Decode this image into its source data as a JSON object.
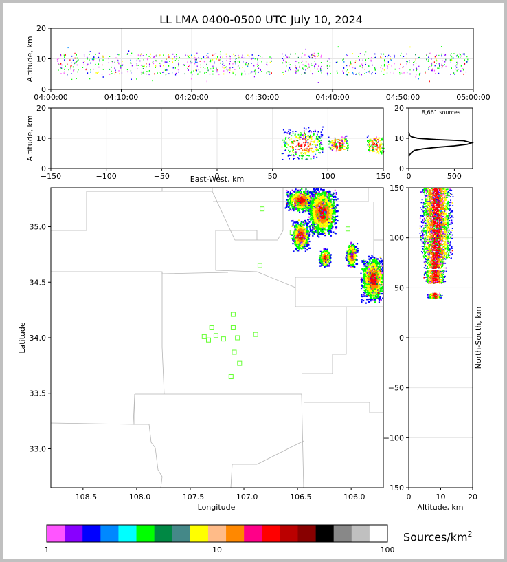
{
  "title": "LL LMA 0400-0500 UTC July 10, 2024",
  "colors": {
    "frame": "#c0c0c0",
    "county_lines": "#b4b4b4",
    "station_marker": "#66ff33",
    "source_palette": [
      "#ff55ff",
      "#8800ff",
      "#0000ff",
      "#0088ff",
      "#00ffff",
      "#00ff00",
      "#008844",
      "#448888",
      "#ffff00",
      "#ffbb88",
      "#ff8800",
      "#ff0088",
      "#ff0000",
      "#bb0000",
      "#880000",
      "#000000",
      "#888888",
      "#c0c0c0",
      "#ffffff"
    ]
  },
  "chart_data": [
    {
      "id": "time-height",
      "type": "scatter",
      "ylabel": "Altitude, km",
      "ylim": [
        0,
        20
      ],
      "yticks": [
        "0",
        "10",
        "20"
      ],
      "xlim": [
        "04:00:00",
        "05:00:00"
      ],
      "xticks": [
        "04:00:00",
        "04:10:00",
        "04:20:00",
        "04:30:00",
        "04:40:00",
        "04:50:00",
        "05:00:00"
      ],
      "altitude_band_km": [
        4,
        12
      ],
      "grid": true
    },
    {
      "id": "ew-height",
      "type": "heatmap",
      "xlabel": "East-West, km",
      "ylabel": "Altitude, km",
      "xlim": [
        -150,
        150
      ],
      "ylim": [
        0,
        20
      ],
      "xticks": [
        "−150",
        "−100",
        "−50",
        "0",
        "50",
        "100",
        "150"
      ],
      "yticks": [
        "0",
        "10",
        "20"
      ],
      "clusters": [
        {
          "x": [
            58,
            95
          ],
          "z": [
            3,
            14
          ]
        },
        {
          "x": [
            100,
            118
          ],
          "z": [
            6,
            11
          ]
        },
        {
          "x": [
            135,
            150
          ],
          "z": [
            5,
            11
          ]
        }
      ],
      "grid": true
    },
    {
      "id": "altitude-histogram",
      "type": "line",
      "annotation": "8,661 sources",
      "xlim": [
        0,
        700
      ],
      "ylim": [
        0,
        20
      ],
      "xticks": [
        "0",
        "500"
      ],
      "yticks": [
        "0",
        "10",
        "20"
      ],
      "profile": [
        [
          0,
          4
        ],
        [
          20,
          5
        ],
        [
          60,
          6
        ],
        [
          150,
          6.5
        ],
        [
          300,
          7
        ],
        [
          500,
          7.5
        ],
        [
          640,
          8
        ],
        [
          690,
          8.5
        ],
        [
          600,
          9.2
        ],
        [
          300,
          9.6
        ],
        [
          100,
          10
        ],
        [
          30,
          10.5
        ],
        [
          10,
          11
        ],
        [
          0,
          12
        ]
      ]
    },
    {
      "id": "plan-view",
      "type": "heatmap",
      "xlabel": "Longitude",
      "ylabel": "Latitude",
      "xlim": [
        -108.8,
        -105.7
      ],
      "ylim": [
        32.65,
        35.35
      ],
      "xticks": [
        "−108.5",
        "−108.0",
        "−107.5",
        "−107.0",
        "−106.5",
        "−106.0"
      ],
      "yticks": [
        "33.0",
        "33.5",
        "34.0",
        "34.5",
        "35.0"
      ],
      "stations": [
        [
          -106.83,
          35.16
        ],
        [
          -106.85,
          34.65
        ],
        [
          -106.55,
          34.95
        ],
        [
          -106.03,
          34.98
        ],
        [
          -107.1,
          34.21
        ],
        [
          -107.1,
          34.09
        ],
        [
          -107.3,
          34.09
        ],
        [
          -107.26,
          34.02
        ],
        [
          -107.37,
          34.01
        ],
        [
          -107.33,
          33.98
        ],
        [
          -107.19,
          33.99
        ],
        [
          -107.06,
          34.0
        ],
        [
          -106.89,
          34.03
        ],
        [
          -107.09,
          33.87
        ],
        [
          -107.04,
          33.77
        ],
        [
          -107.12,
          33.65
        ]
      ],
      "clusters": [
        {
          "lon": [
            -106.6,
            -106.35
          ],
          "lat": [
            35.15,
            35.33
          ]
        },
        {
          "lon": [
            -106.4,
            -106.15
          ],
          "lat": [
            34.95,
            35.33
          ]
        },
        {
          "lon": [
            -106.55,
            -106.4
          ],
          "lat": [
            34.8,
            35.05
          ]
        },
        {
          "lon": [
            -106.3,
            -106.2
          ],
          "lat": [
            34.65,
            34.8
          ]
        },
        {
          "lon": [
            -106.05,
            -105.95
          ],
          "lat": [
            34.65,
            34.85
          ]
        },
        {
          "lon": [
            -105.9,
            -105.7
          ],
          "lat": [
            34.35,
            34.72
          ]
        }
      ]
    },
    {
      "id": "ns-height",
      "type": "heatmap",
      "xlabel": "Altitude, km",
      "ylabel": "North-South, km",
      "xlim": [
        0,
        20
      ],
      "ylim": [
        -150,
        150
      ],
      "xticks": [
        "0",
        "10",
        "20"
      ],
      "yticks": [
        "−150",
        "−100",
        "−50",
        "0",
        "50",
        "100",
        "150"
      ],
      "clusters": [
        {
          "z": [
            4,
            13
          ],
          "y": [
            100,
            150
          ]
        },
        {
          "z": [
            4,
            13
          ],
          "y": [
            80,
            100
          ]
        },
        {
          "z": [
            5,
            11
          ],
          "y": [
            70,
            80
          ]
        },
        {
          "z": [
            5,
            11
          ],
          "y": [
            55,
            68
          ]
        },
        {
          "z": [
            6,
            10
          ],
          "y": [
            40,
            45
          ]
        }
      ]
    },
    {
      "id": "colorbar",
      "type": "heatmap",
      "label_text": "Sources/km",
      "label_superscript": "2",
      "scale": "log",
      "range": [
        1,
        100
      ],
      "tick_labels": [
        "1",
        "10",
        "100"
      ]
    }
  ]
}
